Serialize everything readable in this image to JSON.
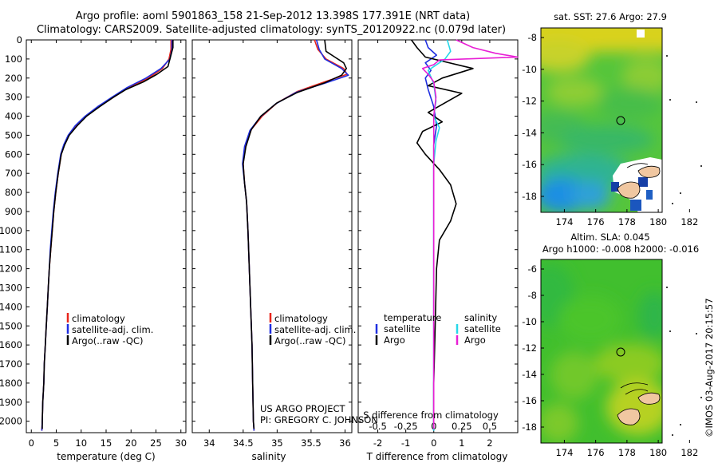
{
  "title_line1": "Argo profile: aoml 5901863_158 21-Sep-2012 13.398S 177.391E (NRT data)",
  "title_line2": "Climatology: CARS2009. Satellite-adjusted climatology: synTS_20120922.nc (0.079d later)",
  "footer": {
    "project_line1": "US ARGO PROJECT",
    "project_line2": "PI: GREGORY C. JOHNSON",
    "imos_stamp": "©IMOS 03-Aug-2017 20:15:57"
  },
  "colors": {
    "climatology": "#e8261c",
    "satellite": "#1f2ee0",
    "argo": "#000000",
    "sal_satellite": "#27d7e8",
    "sal_argo": "#e81fd5"
  },
  "chart_data": [
    {
      "id": "temperature",
      "type": "line",
      "xlabel": "temperature (deg C)",
      "ylabel": "",
      "xlim": [
        -1,
        31
      ],
      "ylim": [
        2060,
        0
      ],
      "xticks": [
        "0",
        "5",
        "10",
        "15",
        "20",
        "25",
        "30"
      ],
      "yticks": [
        "0",
        "100",
        "200",
        "300",
        "400",
        "500",
        "600",
        "700",
        "800",
        "900",
        "1000",
        "1100",
        "1200",
        "1300",
        "1400",
        "1500",
        "1600",
        "1700",
        "1800",
        "1900",
        "2000"
      ],
      "legend": [
        "climatology",
        "satellite-adj. clim.",
        "Argo(..raw -QC)"
      ],
      "series": [
        {
          "name": "climatology",
          "points": [
            [
              28.0,
              0
            ],
            [
              28.0,
              50
            ],
            [
              27.6,
              100
            ],
            [
              26.3,
              150
            ],
            [
              23.5,
              200
            ],
            [
              19.5,
              250
            ],
            [
              16.5,
              300
            ],
            [
              13.5,
              350
            ],
            [
              11.0,
              400
            ],
            [
              9.0,
              450
            ],
            [
              7.5,
              500
            ],
            [
              6.6,
              550
            ],
            [
              6.0,
              600
            ],
            [
              5.4,
              700
            ],
            [
              4.9,
              800
            ],
            [
              4.5,
              900
            ],
            [
              4.2,
              1000
            ],
            [
              3.9,
              1100
            ],
            [
              3.6,
              1200
            ],
            [
              3.4,
              1300
            ],
            [
              3.2,
              1400
            ],
            [
              3.0,
              1500
            ],
            [
              2.8,
              1600
            ],
            [
              2.6,
              1700
            ],
            [
              2.5,
              1800
            ],
            [
              2.3,
              1900
            ],
            [
              2.2,
              2000
            ],
            [
              2.1,
              2050
            ]
          ]
        },
        {
          "name": "satellite-adj. clim.",
          "points": [
            [
              28.2,
              0
            ],
            [
              28.2,
              50
            ],
            [
              27.8,
              100
            ],
            [
              26.0,
              150
            ],
            [
              23.0,
              200
            ],
            [
              19.2,
              250
            ],
            [
              16.2,
              300
            ],
            [
              13.3,
              350
            ],
            [
              10.8,
              400
            ],
            [
              8.8,
              450
            ],
            [
              7.4,
              500
            ],
            [
              6.5,
              550
            ],
            [
              5.9,
              600
            ],
            [
              5.3,
              700
            ],
            [
              4.8,
              800
            ],
            [
              4.4,
              900
            ],
            [
              4.1,
              1000
            ],
            [
              3.8,
              1100
            ],
            [
              3.6,
              1200
            ],
            [
              3.4,
              1300
            ],
            [
              3.2,
              1400
            ],
            [
              3.0,
              1500
            ],
            [
              2.8,
              1600
            ],
            [
              2.6,
              1700
            ],
            [
              2.5,
              1800
            ],
            [
              2.3,
              1900
            ],
            [
              2.2,
              2000
            ],
            [
              2.1,
              2050
            ]
          ]
        },
        {
          "name": "Argo(..raw -QC)",
          "points": [
            [
              28.4,
              0
            ],
            [
              28.4,
              40
            ],
            [
              28.1,
              70
            ],
            [
              27.8,
              100
            ],
            [
              27.4,
              140
            ],
            [
              25.2,
              180
            ],
            [
              22.5,
              220
            ],
            [
              19.0,
              260
            ],
            [
              16.5,
              300
            ],
            [
              13.7,
              350
            ],
            [
              11.1,
              400
            ],
            [
              9.2,
              450
            ],
            [
              7.6,
              500
            ],
            [
              6.7,
              550
            ],
            [
              6.0,
              600
            ],
            [
              5.4,
              700
            ],
            [
              4.9,
              800
            ],
            [
              4.5,
              900
            ],
            [
              4.2,
              1000
            ],
            [
              3.9,
              1100
            ],
            [
              3.6,
              1200
            ],
            [
              3.4,
              1300
            ],
            [
              3.2,
              1400
            ],
            [
              3.0,
              1500
            ],
            [
              2.8,
              1600
            ],
            [
              2.6,
              1700
            ],
            [
              2.5,
              1800
            ],
            [
              2.3,
              1900
            ],
            [
              2.2,
              2000
            ],
            [
              2.2,
              2040
            ]
          ]
        }
      ]
    },
    {
      "id": "salinity",
      "type": "line",
      "xlabel": "salinity",
      "ylabel": "",
      "xlim": [
        33.75,
        36.1
      ],
      "ylim": [
        2060,
        0
      ],
      "xticks": [
        "34",
        "34.5",
        "35",
        "35.5",
        "36"
      ],
      "legend": [
        "climatology",
        "satellite-adj. clim.",
        "Argo(..raw -QC)"
      ],
      "series": [
        {
          "name": "climatology",
          "points": [
            [
              35.55,
              0
            ],
            [
              35.6,
              50
            ],
            [
              35.72,
              100
            ],
            [
              35.98,
              150
            ],
            [
              36.03,
              180
            ],
            [
              35.7,
              220
            ],
            [
              35.3,
              270
            ],
            [
              35.0,
              330
            ],
            [
              34.78,
              400
            ],
            [
              34.62,
              470
            ],
            [
              34.53,
              560
            ],
            [
              34.5,
              650
            ],
            [
              34.52,
              750
            ],
            [
              34.55,
              850
            ],
            [
              34.57,
              1000
            ],
            [
              34.59,
              1200
            ],
            [
              34.61,
              1400
            ],
            [
              34.63,
              1600
            ],
            [
              34.64,
              1800
            ],
            [
              34.65,
              2000
            ],
            [
              34.66,
              2050
            ]
          ]
        },
        {
          "name": "satellite-adj. clim.",
          "points": [
            [
              35.58,
              0
            ],
            [
              35.62,
              50
            ],
            [
              35.7,
              100
            ],
            [
              35.95,
              150
            ],
            [
              36.05,
              185
            ],
            [
              35.72,
              225
            ],
            [
              35.28,
              275
            ],
            [
              34.98,
              335
            ],
            [
              34.75,
              405
            ],
            [
              34.6,
              475
            ],
            [
              34.52,
              560
            ],
            [
              34.49,
              650
            ],
            [
              34.52,
              750
            ],
            [
              34.55,
              850
            ],
            [
              34.57,
              1000
            ],
            [
              34.59,
              1200
            ],
            [
              34.61,
              1400
            ],
            [
              34.63,
              1600
            ],
            [
              34.64,
              1800
            ],
            [
              34.65,
              2000
            ],
            [
              34.66,
              2050
            ]
          ]
        },
        {
          "name": "Argo(..raw -QC)",
          "points": [
            [
              35.7,
              0
            ],
            [
              35.72,
              60
            ],
            [
              35.85,
              90
            ],
            [
              35.98,
              120
            ],
            [
              36.02,
              150
            ],
            [
              35.95,
              185
            ],
            [
              35.7,
              225
            ],
            [
              35.3,
              275
            ],
            [
              35.0,
              330
            ],
            [
              34.76,
              400
            ],
            [
              34.62,
              470
            ],
            [
              34.54,
              560
            ],
            [
              34.5,
              650
            ],
            [
              34.52,
              750
            ],
            [
              34.55,
              850
            ],
            [
              34.57,
              1000
            ],
            [
              34.59,
              1200
            ],
            [
              34.61,
              1400
            ],
            [
              34.63,
              1600
            ],
            [
              34.64,
              1800
            ],
            [
              34.65,
              2000
            ],
            [
              34.66,
              2040
            ]
          ]
        }
      ]
    },
    {
      "id": "difference",
      "type": "line",
      "xlabel": "T difference from climatology",
      "xlabel2": "S difference from climatology",
      "xlim_T": [
        -2.7,
        3.0
      ],
      "xlim_S": [
        -0.675,
        0.75
      ],
      "ylim": [
        2060,
        0
      ],
      "xticks_T": [
        "-2",
        "-1",
        "0",
        "1",
        "2"
      ],
      "xticks_S": [
        "-0.5",
        "-0.25",
        "0",
        "0.25",
        "0.5"
      ],
      "legend_headers": [
        "temperature",
        "salinity"
      ],
      "legend": [
        "satellite",
        "Argo",
        "satellite",
        "Argo"
      ],
      "series": [
        {
          "name": "T satellite",
          "units": "deg C",
          "points": [
            [
              -0.3,
              0
            ],
            [
              -0.2,
              40
            ],
            [
              0.1,
              80
            ],
            [
              -0.3,
              120
            ],
            [
              -0.1,
              160
            ],
            [
              -0.3,
              200
            ],
            [
              -0.2,
              260
            ],
            [
              0.0,
              350
            ],
            [
              0.1,
              450
            ],
            [
              0.0,
              550
            ],
            [
              0.0,
              650
            ],
            [
              0.0,
              800
            ],
            [
              0.0,
              1000
            ],
            [
              0.0,
              1300
            ],
            [
              0.0,
              1600
            ],
            [
              0.0,
              2000
            ],
            [
              0.0,
              2050
            ]
          ]
        },
        {
          "name": "T Argo",
          "units": "deg C",
          "points": [
            [
              -0.8,
              0
            ],
            [
              -0.6,
              40
            ],
            [
              -0.3,
              90
            ],
            [
              1.4,
              150
            ],
            [
              0.3,
              200
            ],
            [
              -0.2,
              240
            ],
            [
              1.0,
              280
            ],
            [
              0.4,
              330
            ],
            [
              -0.2,
              380
            ],
            [
              0.3,
              430
            ],
            [
              -0.4,
              480
            ],
            [
              -0.6,
              540
            ],
            [
              -0.3,
              600
            ],
            [
              0.2,
              680
            ],
            [
              0.6,
              760
            ],
            [
              0.8,
              860
            ],
            [
              0.6,
              950
            ],
            [
              0.2,
              1050
            ],
            [
              0.1,
              1200
            ],
            [
              0.05,
              1500
            ],
            [
              0.0,
              1800
            ],
            [
              0.0,
              2040
            ]
          ]
        },
        {
          "name": "S satellite",
          "units": "psu",
          "points": [
            [
              0.12,
              0
            ],
            [
              0.15,
              60
            ],
            [
              0.1,
              100
            ],
            [
              -0.05,
              160
            ],
            [
              0.0,
              230
            ],
            [
              0.02,
              320
            ],
            [
              0.0,
              400
            ],
            [
              0.05,
              460
            ],
            [
              0.02,
              530
            ],
            [
              0.0,
              650
            ],
            [
              0.0,
              800
            ],
            [
              0.0,
              1000
            ],
            [
              0.0,
              1400
            ],
            [
              0.0,
              2000
            ],
            [
              0.0,
              2050
            ]
          ]
        },
        {
          "name": "S Argo",
          "units": "psu",
          "points": [
            [
              0.2,
              0
            ],
            [
              0.35,
              40
            ],
            [
              0.55,
              70
            ],
            [
              0.75,
              90
            ],
            [
              0.05,
              105
            ],
            [
              0.0,
              130
            ],
            [
              -0.1,
              150
            ],
            [
              -0.05,
              180
            ],
            [
              0.0,
              220
            ],
            [
              0.02,
              300
            ],
            [
              0.0,
              400
            ],
            [
              0.0,
              550
            ],
            [
              0.0,
              700
            ],
            [
              0.0,
              900
            ],
            [
              0.0,
              1200
            ],
            [
              0.0,
              1500
            ],
            [
              0.0,
              2000
            ],
            [
              0.0,
              2040
            ]
          ]
        }
      ]
    },
    {
      "id": "map_sst",
      "type": "heatmap",
      "title": "sat. SST: 27.6 Argo: 27.9",
      "xticks": [
        "174",
        "176",
        "178",
        "180",
        "182"
      ],
      "yticks": [
        "-8",
        "-10",
        "-12",
        "-14",
        "-16",
        "-18"
      ],
      "marker": {
        "lon": 177.391,
        "lat": -13.398
      }
    },
    {
      "id": "map_sla",
      "type": "heatmap",
      "title_line1": "Altim. SLA: 0.045",
      "title_line2": "Argo h1000: -0.008 h2000: -0.016",
      "xticks": [
        "174",
        "176",
        "178",
        "180",
        "182"
      ],
      "yticks": [
        "-6",
        "-8",
        "-10",
        "-12",
        "-14",
        "-16",
        "-18"
      ],
      "marker": {
        "lon": 177.391,
        "lat": -13.398
      }
    }
  ]
}
